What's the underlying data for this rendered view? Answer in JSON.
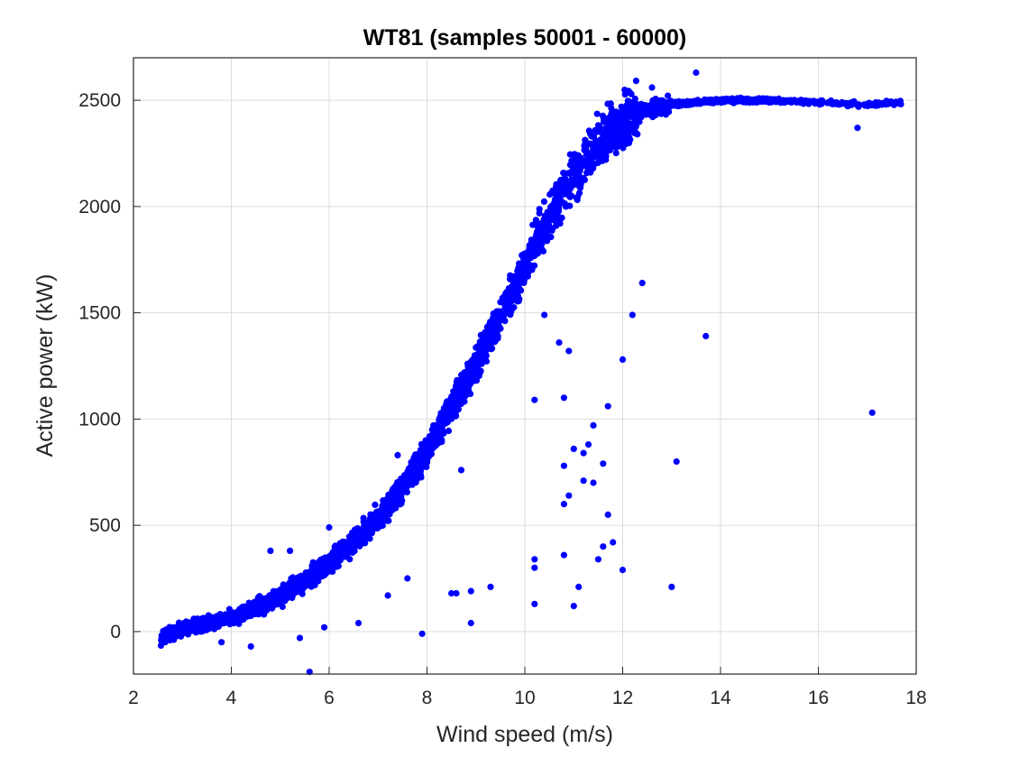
{
  "chart_data": {
    "type": "scatter",
    "title": "WT81 (samples 50001 - 60000)",
    "xlabel": "Wind speed (m/s)",
    "ylabel": "Active power (kW)",
    "xlim": [
      2,
      18
    ],
    "ylim": [
      -200,
      2700
    ],
    "xticks": [
      2,
      4,
      6,
      8,
      10,
      12,
      14,
      16,
      18
    ],
    "yticks": [
      0,
      500,
      1000,
      1500,
      2000,
      2500
    ],
    "grid": true,
    "marker_color": "#0000ff",
    "main_curve": {
      "description_points_x": [
        2.5,
        3,
        3.5,
        4,
        4.5,
        5,
        5.5,
        6,
        6.5,
        7,
        7.5,
        8,
        8.5,
        9,
        9.5,
        10,
        10.5,
        11,
        11.5,
        12,
        12.5,
        13,
        14,
        15,
        16,
        17,
        17.7
      ],
      "description_points_y": [
        -40,
        10,
        40,
        70,
        110,
        170,
        240,
        320,
        420,
        530,
        680,
        850,
        1050,
        1260,
        1480,
        1720,
        1950,
        2150,
        2290,
        2400,
        2460,
        2480,
        2500,
        2500,
        2490,
        2480,
        2490
      ],
      "sample_count": 10000
    },
    "outliers": [
      [
        13.5,
        2630
      ],
      [
        12.6,
        2560
      ],
      [
        12.9,
        2490
      ],
      [
        12.3,
        2340
      ],
      [
        16.8,
        2370
      ],
      [
        12.4,
        1640
      ],
      [
        12.2,
        1490
      ],
      [
        10.7,
        1360
      ],
      [
        10.9,
        1320
      ],
      [
        9.5,
        1550
      ],
      [
        9.3,
        1440
      ],
      [
        10.4,
        1490
      ],
      [
        13.7,
        1390
      ],
      [
        12.0,
        1280
      ],
      [
        10.8,
        1100
      ],
      [
        11.7,
        1060
      ],
      [
        10.2,
        1090
      ],
      [
        11.4,
        970
      ],
      [
        17.1,
        1030
      ],
      [
        11.3,
        880
      ],
      [
        11.2,
        840
      ],
      [
        11.6,
        790
      ],
      [
        13.1,
        800
      ],
      [
        10.8,
        780
      ],
      [
        11.0,
        860
      ],
      [
        11.4,
        700
      ],
      [
        11.2,
        710
      ],
      [
        10.9,
        640
      ],
      [
        10.8,
        600
      ],
      [
        11.7,
        550
      ],
      [
        11.8,
        420
      ],
      [
        11.6,
        400
      ],
      [
        10.8,
        360
      ],
      [
        10.2,
        340
      ],
      [
        10.2,
        300
      ],
      [
        11.5,
        340
      ],
      [
        12.0,
        290
      ],
      [
        13.0,
        210
      ],
      [
        11.1,
        210
      ],
      [
        11.0,
        120
      ],
      [
        10.2,
        130
      ],
      [
        9.3,
        210
      ],
      [
        8.9,
        190
      ],
      [
        8.6,
        180
      ],
      [
        8.5,
        180
      ],
      [
        8.9,
        40
      ],
      [
        7.9,
        -10
      ],
      [
        7.2,
        170
      ],
      [
        7.6,
        250
      ],
      [
        5.6,
        -190
      ],
      [
        4.4,
        -70
      ],
      [
        3.8,
        -50
      ],
      [
        5.9,
        20
      ],
      [
        5.4,
        -30
      ],
      [
        6.6,
        40
      ],
      [
        6.0,
        490
      ],
      [
        5.2,
        380
      ],
      [
        4.8,
        380
      ],
      [
        7.4,
        830
      ],
      [
        8.7,
        760
      ]
    ]
  }
}
